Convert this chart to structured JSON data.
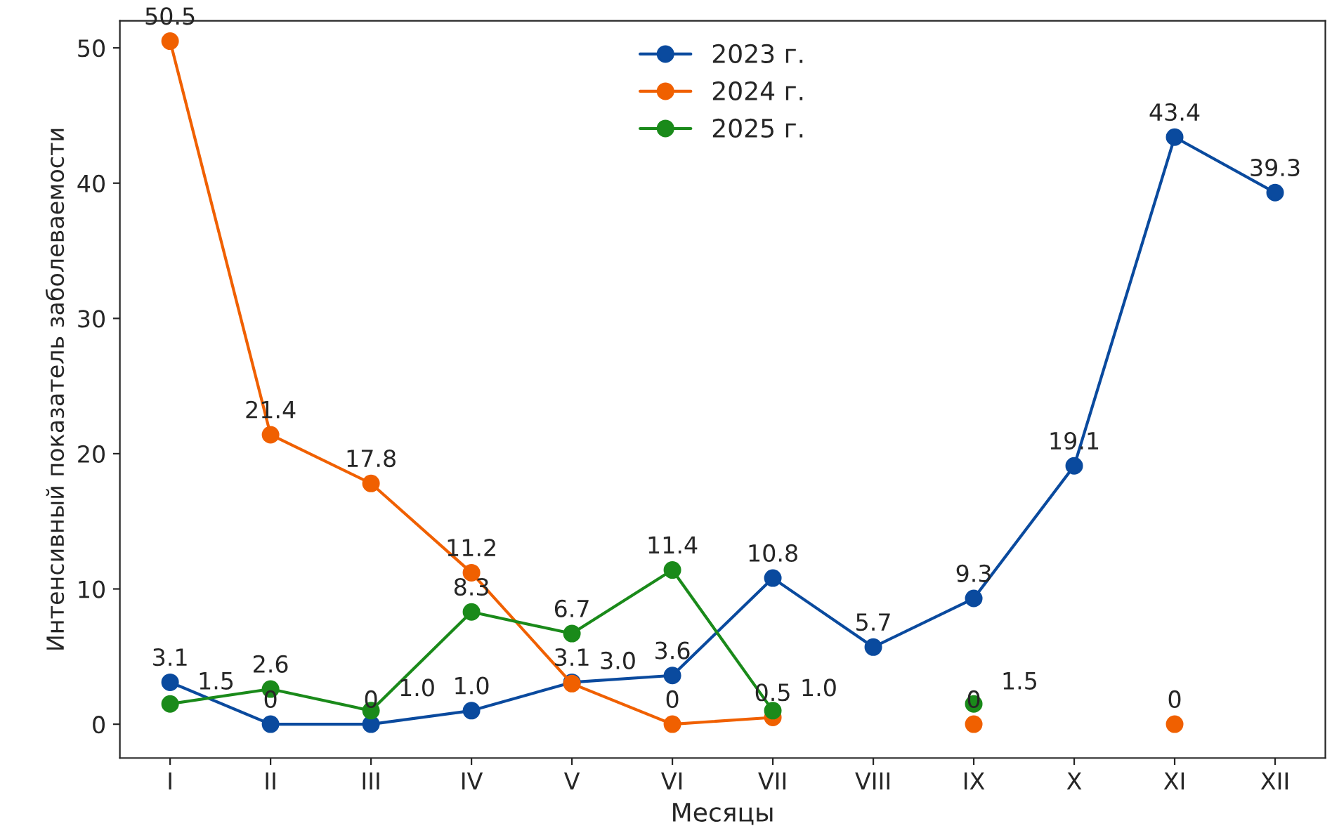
{
  "chart_data": {
    "type": "line",
    "xlabel": "Месяцы",
    "ylabel": "Интенсивный показатель заболеваемости",
    "categories": [
      "I",
      "II",
      "III",
      "IV",
      "V",
      "VI",
      "VII",
      "VIII",
      "IX",
      "X",
      "XI",
      "XII"
    ],
    "series": [
      {
        "name": "2023 г.",
        "color": "#0a4a9e",
        "values": [
          3.1,
          0,
          0,
          1.0,
          3.1,
          3.6,
          10.8,
          5.7,
          9.3,
          19.1,
          43.4,
          39.3
        ],
        "value_labels": [
          "3.1",
          "0",
          "0",
          "1.0",
          "3.1",
          "3.6",
          "10.8",
          "5.7",
          "9.3",
          "19.1",
          "43.4",
          "39.3"
        ]
      },
      {
        "name": "2024 г.",
        "color": "#f06000",
        "values": [
          50.5,
          21.4,
          17.8,
          11.2,
          3.0,
          0,
          0.5,
          null,
          0,
          null,
          0,
          null
        ],
        "value_labels": [
          "50.5",
          "21.4",
          "17.8",
          "11.2",
          "3.0",
          "0",
          "0.5",
          null,
          "0",
          null,
          "0",
          null
        ]
      },
      {
        "name": "2025 г.",
        "color": "#1a8a1a",
        "values": [
          1.5,
          2.6,
          1.0,
          8.3,
          6.7,
          11.4,
          1.0,
          null,
          1.5,
          null,
          null,
          null
        ],
        "value_labels": [
          "1.5",
          "2.6",
          "1.0",
          "8.3",
          "6.7",
          "11.4",
          "1.0",
          null,
          "1.5",
          null,
          null,
          null
        ]
      }
    ],
    "ylim": [
      -2.5,
      52
    ],
    "yticks": [
      0,
      10,
      20,
      30,
      40,
      50
    ],
    "grid": false,
    "legend": "top",
    "marker": "circle",
    "line_style": "solid"
  }
}
